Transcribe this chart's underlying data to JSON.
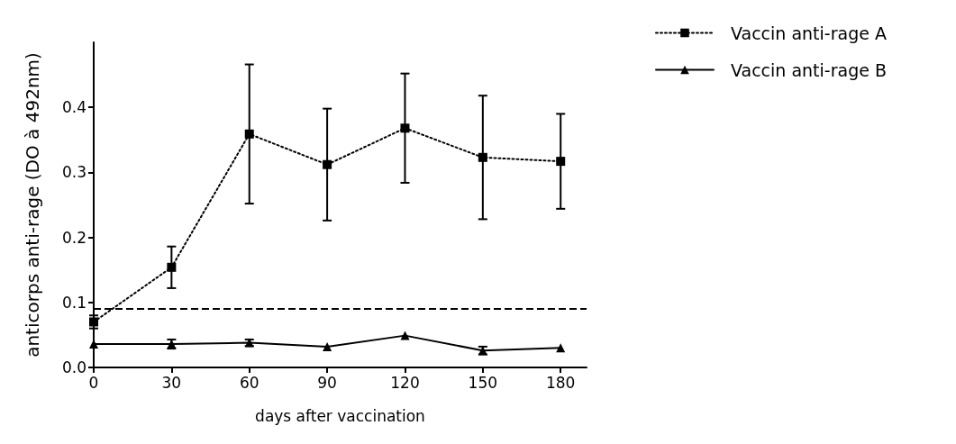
{
  "chart_data": {
    "type": "line",
    "xlabel": "days after vaccination",
    "ylabel": "anticorps anti-rage (DO à 492nm)",
    "x": [
      0,
      30,
      60,
      90,
      120,
      150,
      180
    ],
    "series": [
      {
        "name": "Vaccin anti-rage A",
        "color": "#000000",
        "marker": "square",
        "line_style": "dotted",
        "values": [
          0.07,
          0.154,
          0.359,
          0.312,
          0.368,
          0.323,
          0.317
        ],
        "errors": [
          0.01,
          0.032,
          0.107,
          0.086,
          0.084,
          0.095,
          0.073
        ]
      },
      {
        "name": "Vaccin anti-rage B",
        "color": "#000000",
        "marker": "triangle",
        "line_style": "solid",
        "values": [
          0.036,
          0.036,
          0.038,
          0.032,
          0.049,
          0.026,
          0.03
        ],
        "errors": [
          null,
          0.007,
          0.005,
          null,
          null,
          0.006,
          null
        ]
      }
    ],
    "xlim": [
      0,
      190
    ],
    "xticks": [
      0,
      30,
      60,
      90,
      120,
      150,
      180
    ],
    "ylim": [
      0,
      0.5
    ],
    "yticks": [
      {
        "value": 0,
        "label": "0.0"
      },
      {
        "value": 0.1,
        "label": "0.1"
      },
      {
        "value": 0.2,
        "label": "0.2"
      },
      {
        "value": 0.3,
        "label": "0.3"
      },
      {
        "value": 0.4,
        "label": "0.4"
      }
    ],
    "ref_lines": [
      {
        "axis": "y",
        "value": 0.09,
        "line_style": "dashed",
        "color": "#000000"
      }
    ],
    "grid": false,
    "legend": "right"
  }
}
